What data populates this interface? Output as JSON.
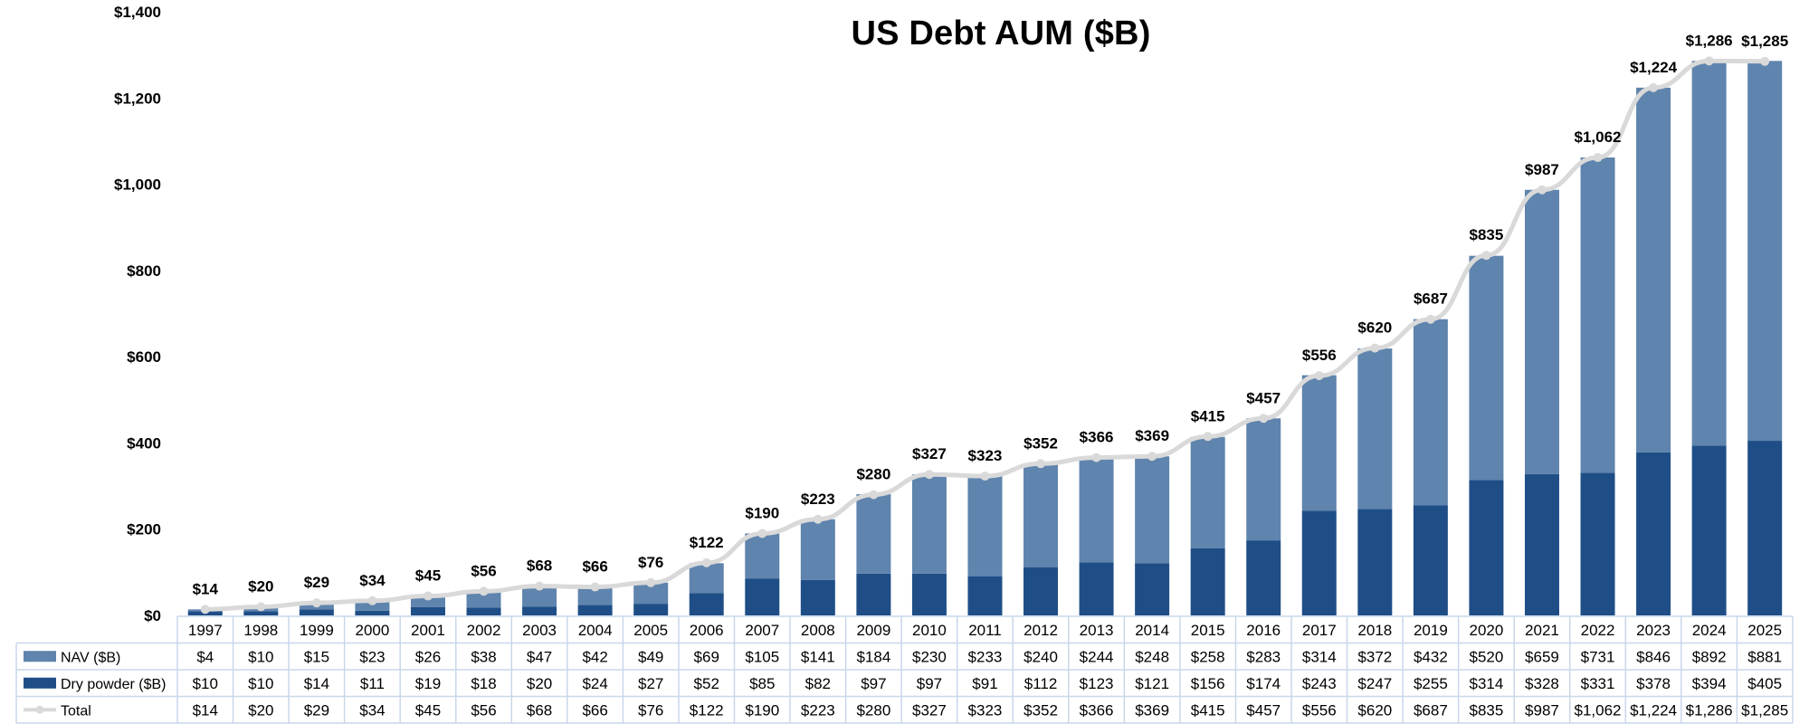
{
  "chart_data": {
    "type": "bar",
    "stacked": true,
    "title": "US Debt AUM ($B)",
    "xlabel": "",
    "ylabel": "",
    "ylim": [
      0,
      1400
    ],
    "yticks": [
      "$0",
      "$200",
      "$400",
      "$600",
      "$800",
      "$1,000",
      "$1,200",
      "$1,400"
    ],
    "categories": [
      "1997",
      "1998",
      "1999",
      "2000",
      "2001",
      "2002",
      "2003",
      "2004",
      "2005",
      "2006",
      "2007",
      "2008",
      "2009",
      "2010",
      "2011",
      "2012",
      "2013",
      "2014",
      "2015",
      "2016",
      "2017",
      "2018",
      "2019",
      "2020",
      "2021",
      "2022",
      "2023",
      "2024",
      "2025"
    ],
    "series": [
      {
        "name": "Dry powder ($B)",
        "color": "#1f4e87",
        "values": [
          10,
          10,
          14,
          11,
          19,
          18,
          20,
          24,
          27,
          52,
          85,
          82,
          97,
          97,
          91,
          112,
          123,
          121,
          156,
          174,
          243,
          247,
          255,
          314,
          328,
          331,
          378,
          394,
          405
        ],
        "labels": [
          "$10",
          "$10",
          "$14",
          "$11",
          "$19",
          "$18",
          "$20",
          "$24",
          "$27",
          "$52",
          "$85",
          "$82",
          "$97",
          "$97",
          "$91",
          "$112",
          "$123",
          "$121",
          "$156",
          "$174",
          "$243",
          "$247",
          "$255",
          "$314",
          "$328",
          "$331",
          "$378",
          "$394",
          "$405"
        ]
      },
      {
        "name": "NAV ($B)",
        "color": "#5f84ad",
        "values": [
          4,
          10,
          15,
          23,
          26,
          38,
          47,
          42,
          49,
          69,
          105,
          141,
          184,
          230,
          233,
          240,
          244,
          248,
          258,
          283,
          314,
          372,
          432,
          520,
          659,
          731,
          846,
          892,
          881
        ],
        "labels": [
          "$4",
          "$10",
          "$15",
          "$23",
          "$26",
          "$38",
          "$47",
          "$42",
          "$49",
          "$69",
          "$105",
          "$141",
          "$184",
          "$230",
          "$233",
          "$240",
          "$244",
          "$248",
          "$258",
          "$283",
          "$314",
          "$372",
          "$432",
          "$520",
          "$659",
          "$731",
          "$846",
          "$892",
          "$881"
        ]
      },
      {
        "name": "Total",
        "type": "line",
        "color": "#d9d9d9",
        "values": [
          14,
          20,
          29,
          34,
          45,
          56,
          68,
          66,
          76,
          122,
          190,
          223,
          280,
          327,
          323,
          352,
          366,
          369,
          415,
          457,
          556,
          620,
          687,
          835,
          987,
          1062,
          1224,
          1286,
          1285
        ],
        "labels": [
          "$14",
          "$20",
          "$29",
          "$34",
          "$45",
          "$56",
          "$68",
          "$66",
          "$76",
          "$122",
          "$190",
          "$223",
          "$280",
          "$327",
          "$323",
          "$352",
          "$366",
          "$369",
          "$415",
          "$457",
          "$556",
          "$620",
          "$687",
          "$835",
          "$987",
          "$1,062",
          "$1,224",
          "$1,286",
          "$1,285"
        ]
      }
    ],
    "legend": "data-table",
    "grid": false
  }
}
